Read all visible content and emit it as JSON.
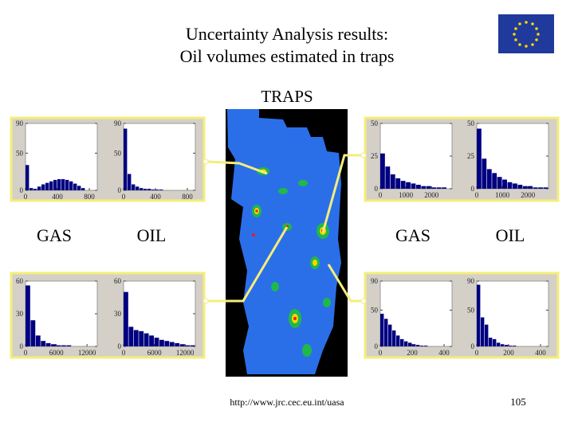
{
  "title_lines": [
    "Uncertainty Analysis results:",
    "Oil volumes estimated in traps"
  ],
  "map_label": "TRAPS",
  "panel_labels": [
    "GAS",
    "OIL",
    "GAS",
    "OIL"
  ],
  "url": "http://www.jrc.cec.eu.int/uasa",
  "page_number": "105",
  "chart_data": [
    {
      "type": "histogram",
      "color": "#000080",
      "bins": [
        0,
        50,
        100,
        150,
        200,
        250,
        300,
        350,
        400,
        450,
        500,
        550,
        600,
        650,
        700,
        750,
        800,
        850,
        900
      ],
      "values": [
        34,
        3,
        2,
        5,
        8,
        10,
        12,
        14,
        15,
        15,
        14,
        12,
        9,
        6,
        3,
        0,
        0,
        0
      ],
      "xlim": [
        0,
        900
      ],
      "ylim": [
        0,
        90
      ],
      "xticks": [
        0,
        400,
        800
      ],
      "yticks": [
        0,
        50,
        90
      ]
    },
    {
      "type": "histogram",
      "color": "#000080",
      "bins": [
        0,
        50,
        100,
        150,
        200,
        250,
        300,
        350,
        400,
        450,
        500,
        550,
        600,
        650,
        700,
        750,
        800,
        850,
        900
      ],
      "values": [
        83,
        22,
        8,
        5,
        3,
        2,
        2,
        1,
        1,
        1,
        0,
        0,
        0,
        0,
        0,
        0,
        0,
        0
      ],
      "xlim": [
        0,
        900
      ],
      "ylim": [
        0,
        90
      ],
      "xticks": [
        0,
        400,
        800
      ],
      "yticks": [
        0,
        50,
        90
      ]
    },
    {
      "type": "histogram",
      "color": "#000080",
      "bins": [
        0,
        200,
        400,
        600,
        800,
        1000,
        1200,
        1400,
        1600,
        1800,
        2000,
        2200,
        2400,
        2600,
        2800
      ],
      "values": [
        27,
        17,
        11,
        8,
        6,
        5,
        4,
        3,
        2,
        2,
        1,
        1,
        1,
        0
      ],
      "xlim": [
        0,
        2800
      ],
      "ylim": [
        0,
        50
      ],
      "xticks": [
        0,
        1000,
        2000
      ],
      "yticks": [
        0,
        25,
        50
      ]
    },
    {
      "type": "histogram",
      "color": "#000080",
      "bins": [
        0,
        200,
        400,
        600,
        800,
        1000,
        1200,
        1400,
        1600,
        1800,
        2000,
        2200,
        2400,
        2600,
        2800
      ],
      "values": [
        46,
        23,
        15,
        12,
        9,
        7,
        5,
        4,
        3,
        2,
        2,
        1,
        1,
        1
      ],
      "xlim": [
        0,
        2800
      ],
      "ylim": [
        0,
        50
      ],
      "xticks": [
        0,
        1000,
        2000
      ],
      "yticks": [
        0,
        25,
        50
      ]
    },
    {
      "type": "histogram",
      "color": "#000080",
      "bins": [
        0,
        1000,
        2000,
        3000,
        4000,
        5000,
        6000,
        7000,
        8000,
        9000,
        10000,
        11000,
        12000,
        13000,
        14000
      ],
      "values": [
        56,
        24,
        10,
        5,
        3,
        2,
        1,
        1,
        1,
        0,
        0,
        0,
        0,
        0
      ],
      "xlim": [
        0,
        14000
      ],
      "ylim": [
        0,
        60
      ],
      "xticks": [
        0,
        6000,
        12000
      ],
      "yticks": [
        0,
        30,
        60
      ]
    },
    {
      "type": "histogram",
      "color": "#000080",
      "bins": [
        0,
        1000,
        2000,
        3000,
        4000,
        5000,
        6000,
        7000,
        8000,
        9000,
        10000,
        11000,
        12000,
        13000,
        14000
      ],
      "values": [
        50,
        18,
        15,
        14,
        12,
        10,
        8,
        6,
        5,
        4,
        3,
        2,
        1,
        1
      ],
      "xlim": [
        0,
        14000
      ],
      "ylim": [
        0,
        60
      ],
      "xticks": [
        0,
        6000,
        12000
      ],
      "yticks": [
        0,
        30,
        60
      ]
    },
    {
      "type": "histogram",
      "color": "#000080",
      "bins": [
        0,
        25,
        50,
        75,
        100,
        125,
        150,
        175,
        200,
        225,
        250,
        275,
        300,
        325,
        350,
        375,
        400,
        425,
        450
      ],
      "values": [
        45,
        38,
        30,
        22,
        15,
        10,
        7,
        5,
        3,
        2,
        1,
        1,
        0,
        0,
        0,
        0,
        0,
        0
      ],
      "xlim": [
        0,
        450
      ],
      "ylim": [
        0,
        90
      ],
      "xticks": [
        0,
        200,
        400
      ],
      "yticks": [
        0,
        50,
        90
      ]
    },
    {
      "type": "histogram",
      "color": "#000080",
      "bins": [
        0,
        25,
        50,
        75,
        100,
        125,
        150,
        175,
        200,
        225,
        250,
        275,
        300,
        325,
        350,
        375,
        400,
        425,
        450
      ],
      "values": [
        85,
        40,
        30,
        12,
        10,
        5,
        3,
        2,
        1,
        1,
        0,
        0,
        0,
        0,
        0,
        0,
        0,
        0
      ],
      "xlim": [
        0,
        450
      ],
      "ylim": [
        0,
        90
      ],
      "xticks": [
        0,
        200,
        400
      ],
      "yticks": [
        0,
        50,
        90
      ]
    }
  ]
}
